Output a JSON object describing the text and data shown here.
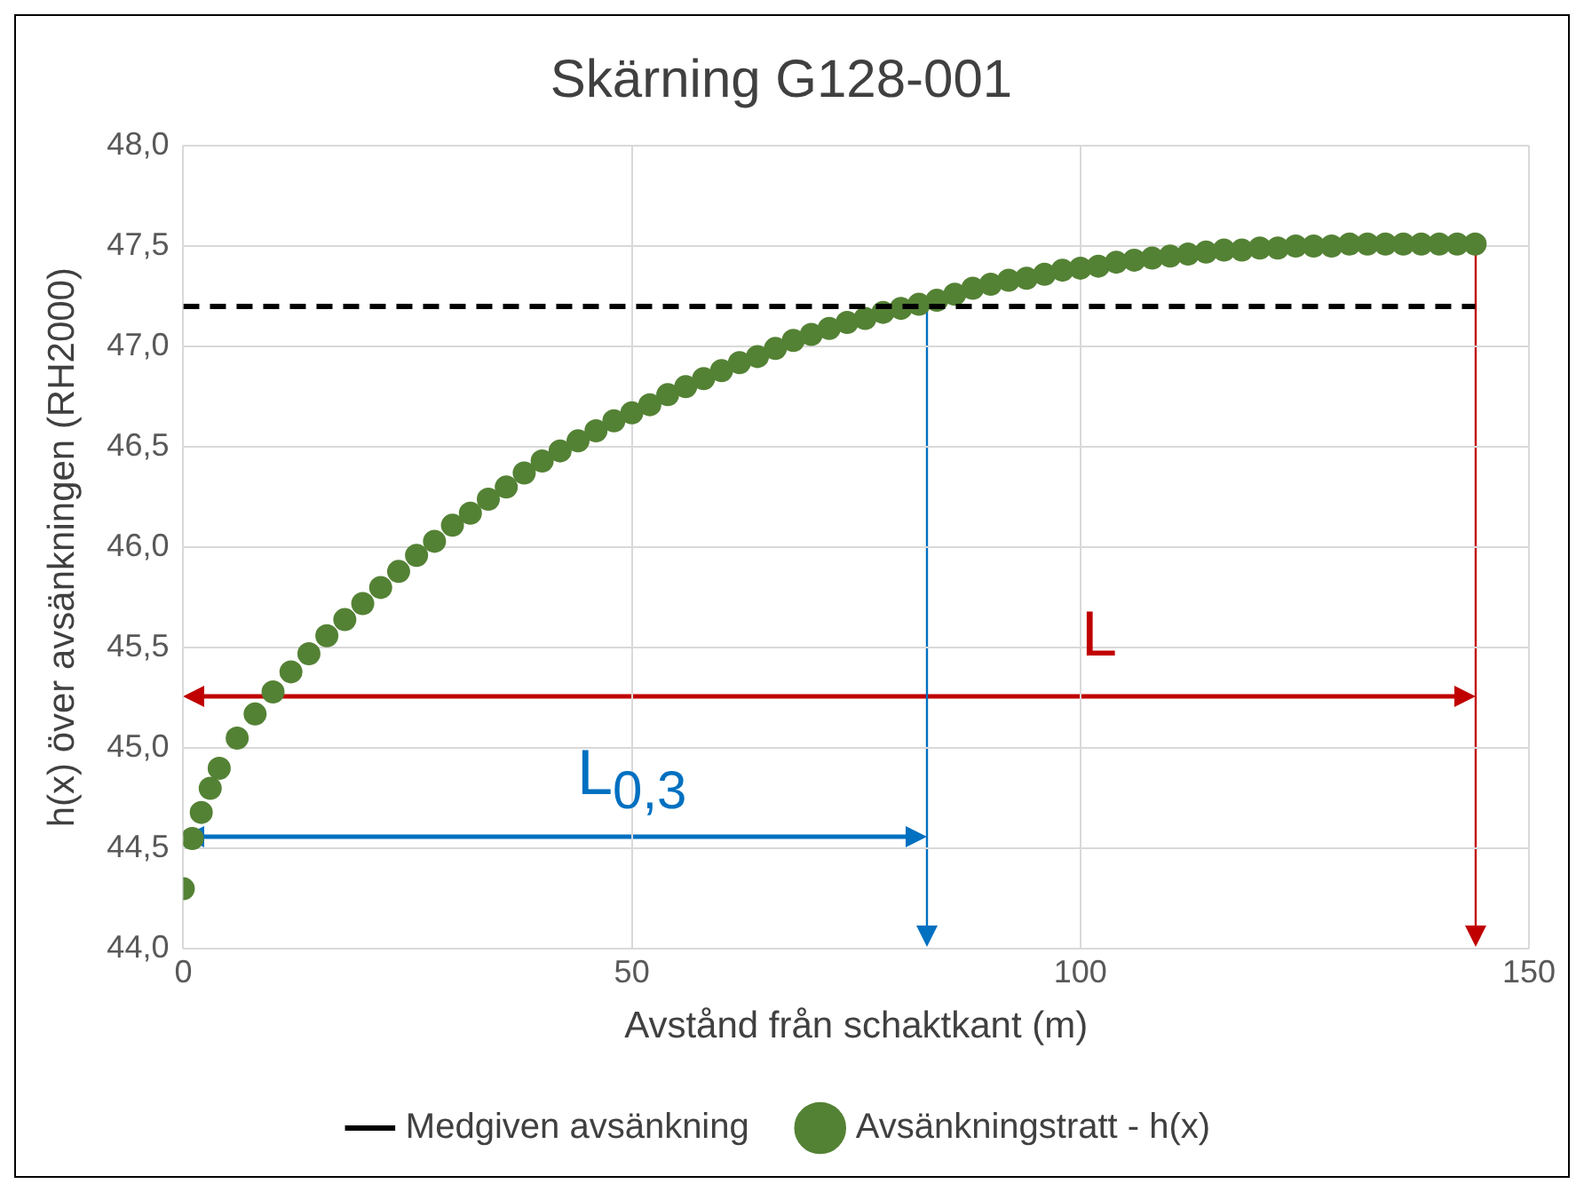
{
  "chart_data": {
    "type": "scatter",
    "title": "Skärning G128-001",
    "xlabel": "Avstånd från schaktkant (m)",
    "ylabel": "h(x) över avsänkningen (RH2000)",
    "xlim": [
      0,
      150
    ],
    "xticks": [
      0,
      50,
      100,
      150
    ],
    "ylim": [
      44,
      48
    ],
    "yticks": [
      {
        "value": 44,
        "label": "44,0"
      },
      {
        "value": 44.5,
        "label": "44,5"
      },
      {
        "value": 45,
        "label": "45,0"
      },
      {
        "value": 45.5,
        "label": "45,5"
      },
      {
        "value": 46,
        "label": "46,0"
      },
      {
        "value": 46.5,
        "label": "46,5"
      },
      {
        "value": 47,
        "label": "47,0"
      },
      {
        "value": 47.5,
        "label": "47,5"
      },
      {
        "value": 48,
        "label": "48,0"
      }
    ],
    "grid": true,
    "legend": "bottom",
    "marker": "circle",
    "series": [
      {
        "name": "Medgiven avsänkning",
        "type": "line",
        "color": "#000000",
        "line_style": "dashed",
        "marker": "none",
        "x": [
          0,
          144
        ],
        "values": [
          47.2,
          47.2
        ]
      },
      {
        "name": "Avsänkningstratt - h(x)",
        "type": "scatter",
        "color": "#548235",
        "x": [
          0,
          1,
          2,
          3,
          4,
          6,
          8,
          10,
          12,
          14,
          16,
          18,
          20,
          22,
          24,
          26,
          28,
          30,
          32,
          34,
          36,
          38,
          40,
          42,
          44,
          46,
          48,
          50,
          52,
          54,
          56,
          58,
          60,
          62,
          64,
          66,
          68,
          70,
          72,
          74,
          76,
          78,
          80,
          82,
          84,
          86,
          88,
          90,
          92,
          94,
          96,
          98,
          100,
          102,
          104,
          106,
          108,
          110,
          112,
          114,
          116,
          118,
          120,
          122,
          124,
          126,
          128,
          130,
          132,
          134,
          136,
          138,
          140,
          142,
          144
        ],
        "values": [
          44.3,
          44.55,
          44.68,
          44.8,
          44.9,
          45.05,
          45.17,
          45.28,
          45.38,
          45.47,
          45.56,
          45.64,
          45.72,
          45.8,
          45.88,
          45.96,
          46.03,
          46.11,
          46.17,
          46.24,
          46.3,
          46.37,
          46.43,
          46.48,
          46.53,
          46.58,
          46.63,
          46.67,
          46.71,
          46.76,
          46.8,
          46.84,
          46.88,
          46.92,
          46.95,
          46.99,
          47.03,
          47.06,
          47.09,
          47.12,
          47.14,
          47.17,
          47.19,
          47.21,
          47.23,
          47.26,
          47.29,
          47.31,
          47.33,
          47.34,
          47.36,
          47.38,
          47.39,
          47.4,
          47.42,
          47.43,
          47.44,
          47.45,
          47.46,
          47.47,
          47.48,
          47.48,
          47.49,
          47.49,
          47.5,
          47.5,
          47.5,
          47.51,
          47.51,
          47.51,
          47.51,
          47.51,
          47.51,
          47.51,
          47.51
        ]
      }
    ],
    "annotations": [
      "L",
      "L$_{0,3}$"
    ]
  }
}
